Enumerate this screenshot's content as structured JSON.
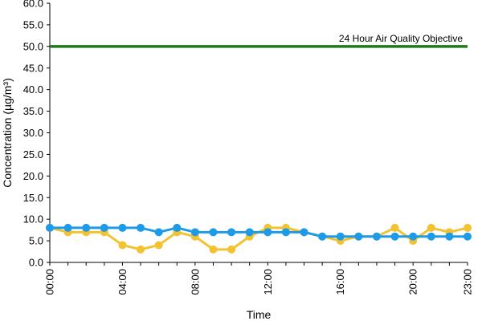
{
  "chart_data": {
    "type": "line",
    "xlabel": "Time",
    "ylabel": "Concentration (µg/m³)",
    "ylim": [
      0,
      60
    ],
    "yticks": [
      "0.0",
      "5.0",
      "10.0",
      "15.0",
      "20.0",
      "25.0",
      "30.0",
      "35.0",
      "40.0",
      "45.0",
      "50.0",
      "55.0",
      "60.0"
    ],
    "x": [
      0,
      1,
      2,
      3,
      4,
      5,
      6,
      7,
      8,
      9,
      10,
      11,
      12,
      13,
      14,
      15,
      16,
      17,
      18,
      19,
      20,
      21,
      22,
      23
    ],
    "xticks": [
      {
        "hour": 0,
        "label": "00:00"
      },
      {
        "hour": 4,
        "label": "04:00"
      },
      {
        "hour": 8,
        "label": "08:00"
      },
      {
        "hour": 12,
        "label": "12:00"
      },
      {
        "hour": 16,
        "label": "16:00"
      },
      {
        "hour": 20,
        "label": "20:00"
      },
      {
        "hour": 23,
        "label": "23:00"
      }
    ],
    "series": [
      {
        "color": "#f2c230",
        "values": [
          8,
          7,
          7,
          7,
          4,
          3,
          4,
          7,
          6,
          3,
          3,
          6,
          8,
          8,
          7,
          6,
          5,
          6,
          6,
          8,
          5,
          8,
          7,
          8
        ]
      },
      {
        "color": "#1e9be8",
        "values": [
          8,
          8,
          8,
          8,
          8,
          8,
          7,
          8,
          7,
          7,
          7,
          7,
          7,
          7,
          7,
          6,
          6,
          6,
          6,
          6,
          6,
          6,
          6,
          6
        ]
      }
    ],
    "reference_line": {
      "value": 50,
      "label": "24 Hour Air Quality Objective",
      "color": "#1f7a1f"
    },
    "grid": false,
    "legend": "none"
  }
}
